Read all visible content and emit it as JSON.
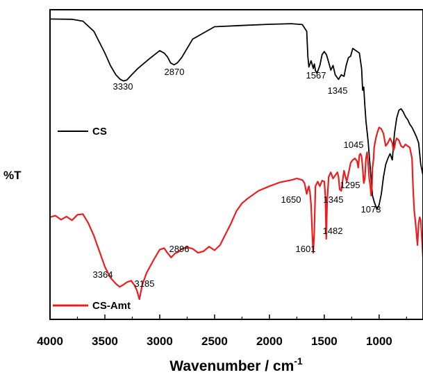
{
  "chart_data": {
    "type": "line",
    "title": "",
    "xlabel": "Wavenumber / cm",
    "xlabel_superscript": "-1",
    "ylabel": "%T",
    "xlim": [
      4000,
      600
    ],
    "x_reversed": true,
    "x_ticks": [
      4000,
      3500,
      3000,
      2500,
      2000,
      1500,
      1000
    ],
    "y_ticks_shown": false,
    "legend_placement": "inline-left",
    "series": [
      {
        "name": "CS",
        "color": "#000000",
        "x": [
          4000,
          3800,
          3700,
          3600,
          3500,
          3450,
          3400,
          3360,
          3330,
          3300,
          3250,
          3200,
          3100,
          3000,
          2960,
          2930,
          2900,
          2870,
          2840,
          2800,
          2700,
          2500,
          2200,
          2000,
          1800,
          1700,
          1660,
          1650,
          1640,
          1620,
          1600,
          1590,
          1580,
          1567,
          1540,
          1520,
          1500,
          1480,
          1460,
          1440,
          1420,
          1400,
          1380,
          1370,
          1345,
          1320,
          1300,
          1280,
          1260,
          1240,
          1220,
          1200,
          1180,
          1160,
          1150,
          1140,
          1130,
          1120,
          1100,
          1080,
          1060,
          1045,
          1030,
          1020,
          1000,
          980,
          960,
          940,
          920,
          900,
          880,
          860,
          840,
          820,
          800,
          780,
          760,
          740,
          720,
          700,
          680,
          660,
          640,
          620,
          600
        ],
        "y": [
          97.0,
          96.9,
          96.3,
          93.0,
          86.0,
          82.0,
          79.0,
          77.5,
          77.0,
          77.3,
          79.2,
          81.0,
          84.0,
          86.8,
          86.0,
          84.8,
          82.8,
          82.2,
          82.8,
          84.5,
          90.5,
          94.5,
          95.0,
          95.3,
          95.5,
          95.2,
          93.0,
          85.0,
          81.5,
          83.5,
          81.0,
          82.5,
          80.3,
          79.5,
          82.0,
          85.5,
          86.5,
          85.5,
          83.0,
          80.5,
          82.0,
          79.0,
          78.0,
          77.5,
          79.0,
          78.5,
          82.0,
          84.5,
          85.0,
          87.5,
          87.0,
          86.5,
          86.0,
          81.0,
          74.0,
          75.0,
          69.0,
          64.0,
          57.5,
          48.5,
          40.0,
          38.0,
          36.5,
          35.5,
          37.0,
          40.5,
          46.0,
          50.0,
          52.0,
          53.5,
          51.5,
          60.0,
          65.0,
          67.5,
          68.0,
          67.0,
          65.5,
          64.5,
          63.0,
          62.0,
          60.5,
          59.0,
          57.0,
          50.0,
          46.5
        ]
      },
      {
        "name": "CS-Amt",
        "color": "#ee1c1c",
        "x": [
          4000,
          3950,
          3900,
          3850,
          3800,
          3750,
          3700,
          3650,
          3600,
          3550,
          3500,
          3450,
          3400,
          3364,
          3330,
          3300,
          3260,
          3230,
          3210,
          3185,
          3160,
          3120,
          3050,
          3000,
          2960,
          2930,
          2896,
          2860,
          2830,
          2800,
          2750,
          2700,
          2650,
          2600,
          2550,
          2500,
          2450,
          2400,
          2350,
          2300,
          2250,
          2200,
          2100,
          2000,
          1900,
          1800,
          1750,
          1700,
          1680,
          1660,
          1650,
          1640,
          1630,
          1620,
          1610,
          1601,
          1592,
          1580,
          1560,
          1540,
          1520,
          1500,
          1490,
          1482,
          1474,
          1460,
          1440,
          1420,
          1400,
          1380,
          1370,
          1360,
          1345,
          1330,
          1320,
          1310,
          1295,
          1280,
          1260,
          1240,
          1220,
          1200,
          1190,
          1180,
          1170,
          1160,
          1150,
          1140,
          1130,
          1120,
          1110,
          1100,
          1090,
          1080,
          1073,
          1065,
          1060,
          1050,
          1045,
          1030,
          1015,
          1000,
          980,
          960,
          940,
          920,
          900,
          880,
          870,
          860,
          850,
          840,
          820,
          800,
          780,
          760,
          740,
          720,
          700,
          690,
          680,
          670,
          660,
          650,
          640,
          630,
          620,
          610,
          600
        ],
        "y": [
          33.0,
          33.5,
          32.2,
          33.2,
          32.0,
          33.8,
          34.0,
          31.0,
          27.0,
          22.0,
          17.0,
          13.5,
          11.5,
          10.5,
          11.2,
          12.0,
          12.5,
          11.0,
          9.5,
          6.5,
          11.0,
          15.0,
          19.5,
          22.5,
          23.0,
          21.5,
          20.0,
          21.3,
          21.8,
          22.8,
          23.3,
          22.8,
          21.5,
          22.0,
          23.5,
          22.3,
          24.0,
          27.5,
          31.0,
          35.0,
          37.5,
          39.0,
          41.5,
          43.0,
          44.3,
          45.0,
          45.5,
          45.0,
          44.0,
          40.5,
          42.0,
          43.0,
          41.0,
          37.0,
          28.0,
          21.5,
          27.0,
          43.0,
          44.5,
          43.0,
          44.8,
          44.5,
          40.0,
          26.0,
          38.0,
          46.0,
          47.5,
          45.5,
          46.5,
          47.5,
          46.0,
          42.0,
          41.5,
          45.5,
          48.0,
          46.5,
          44.5,
          47.0,
          50.5,
          51.5,
          52.0,
          51.0,
          49.0,
          53.0,
          53.5,
          52.5,
          49.0,
          44.0,
          45.5,
          52.0,
          54.0,
          50.5,
          45.5,
          43.0,
          40.0,
          43.5,
          49.0,
          52.0,
          55.5,
          58.5,
          60.5,
          62.0,
          61.5,
          60.0,
          56.0,
          57.0,
          58.5,
          57.0,
          54.5,
          55.5,
          57.5,
          58.5,
          57.8,
          56.0,
          55.5,
          56.5,
          56.0,
          55.5,
          52.0,
          42.0,
          35.0,
          32.0,
          28.0,
          24.0,
          31.0,
          33.0,
          32.0,
          26.0,
          20.0
        ]
      }
    ],
    "annotations": [
      {
        "series": "CS",
        "label": "3330"
      },
      {
        "series": "CS",
        "label": "2870"
      },
      {
        "series": "CS",
        "label": "1567"
      },
      {
        "series": "CS",
        "label": "1345"
      },
      {
        "series": "CS-Amt",
        "label": "1045"
      },
      {
        "series": "CS-Amt",
        "label": "1295"
      },
      {
        "series": "CS-Amt",
        "label": "1650"
      },
      {
        "series": "CS-Amt",
        "label": "1345"
      },
      {
        "series": "CS-Amt",
        "label": "1073"
      },
      {
        "series": "CS-Amt",
        "label": "1482"
      },
      {
        "series": "CS-Amt",
        "label": "1601"
      },
      {
        "series": "CS-Amt",
        "label": "2896"
      },
      {
        "series": "CS-Amt",
        "label": "3364"
      },
      {
        "series": "CS-Amt",
        "label": "3185"
      }
    ]
  }
}
